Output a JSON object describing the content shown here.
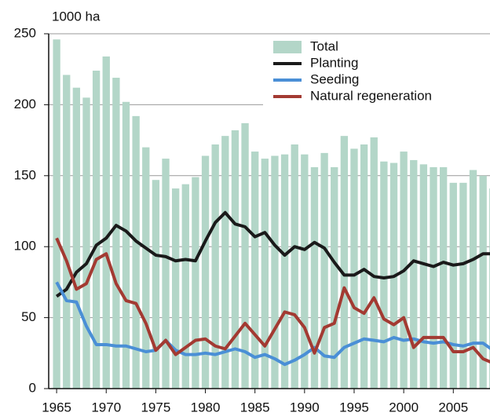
{
  "chart_data": {
    "type": "bar_line",
    "title": "1000 ha",
    "x": [
      1965,
      1966,
      1967,
      1968,
      1969,
      1970,
      1971,
      1972,
      1973,
      1974,
      1975,
      1976,
      1977,
      1978,
      1979,
      1980,
      1981,
      1982,
      1983,
      1984,
      1985,
      1986,
      1987,
      1988,
      1989,
      1990,
      1991,
      1992,
      1993,
      1994,
      1995,
      1996,
      1997,
      1998,
      1999,
      2000,
      2001,
      2002,
      2003,
      2004,
      2005,
      2006,
      2007,
      2008,
      2009
    ],
    "series": [
      {
        "name": "Total",
        "type": "bar",
        "color": "#b3d6c8",
        "values": [
          246,
          221,
          212,
          205,
          224,
          234,
          219,
          202,
          192,
          170,
          147,
          162,
          141,
          144,
          149,
          164,
          172,
          178,
          182,
          187,
          167,
          162,
          164,
          165,
          172,
          165,
          156,
          166,
          156,
          178,
          169,
          172,
          177,
          160,
          159,
          167,
          161,
          158,
          156,
          156,
          145,
          145,
          154,
          150,
          141
        ]
      },
      {
        "name": "Planting",
        "type": "line",
        "color": "#1a1a1a",
        "values": [
          65,
          70,
          82,
          88,
          101,
          106,
          115,
          111,
          104,
          99,
          94,
          93,
          90,
          91,
          90,
          104,
          117,
          124,
          116,
          114,
          107,
          110,
          101,
          94,
          100,
          98,
          103,
          99,
          89,
          80,
          80,
          84,
          79,
          78,
          79,
          83,
          90,
          88,
          86,
          89,
          87,
          88,
          91,
          95,
          95
        ]
      },
      {
        "name": "Seeding",
        "type": "line",
        "color": "#4a8fd6",
        "values": [
          75,
          62,
          61,
          44,
          31,
          31,
          30,
          30,
          28,
          26,
          27,
          34,
          27,
          24,
          24,
          25,
          24,
          26,
          28,
          26,
          22,
          24,
          21,
          17,
          20,
          24,
          29,
          23,
          22,
          29,
          32,
          35,
          34,
          33,
          36,
          34,
          35,
          33,
          32,
          33,
          31,
          30,
          32,
          32,
          27
        ]
      },
      {
        "name": "Natural regeneration",
        "type": "line",
        "color": "#a33a32",
        "values": [
          106,
          90,
          70,
          74,
          91,
          95,
          74,
          62,
          60,
          46,
          27,
          34,
          24,
          29,
          34,
          35,
          30,
          28,
          37,
          46,
          38,
          30,
          42,
          54,
          52,
          43,
          25,
          43,
          46,
          71,
          57,
          53,
          64,
          49,
          45,
          50,
          29,
          36,
          36,
          36,
          26,
          26,
          29,
          21,
          18
        ]
      }
    ],
    "xlim": [
      1964.2,
      2008.7
    ],
    "xticks": [
      1965,
      1970,
      1975,
      1980,
      1985,
      1990,
      1995,
      2000,
      2005
    ],
    "ylim": [
      0,
      250
    ],
    "yticks": [
      0,
      50,
      100,
      150,
      200,
      250
    ],
    "grid": true,
    "legend": "top-right"
  }
}
